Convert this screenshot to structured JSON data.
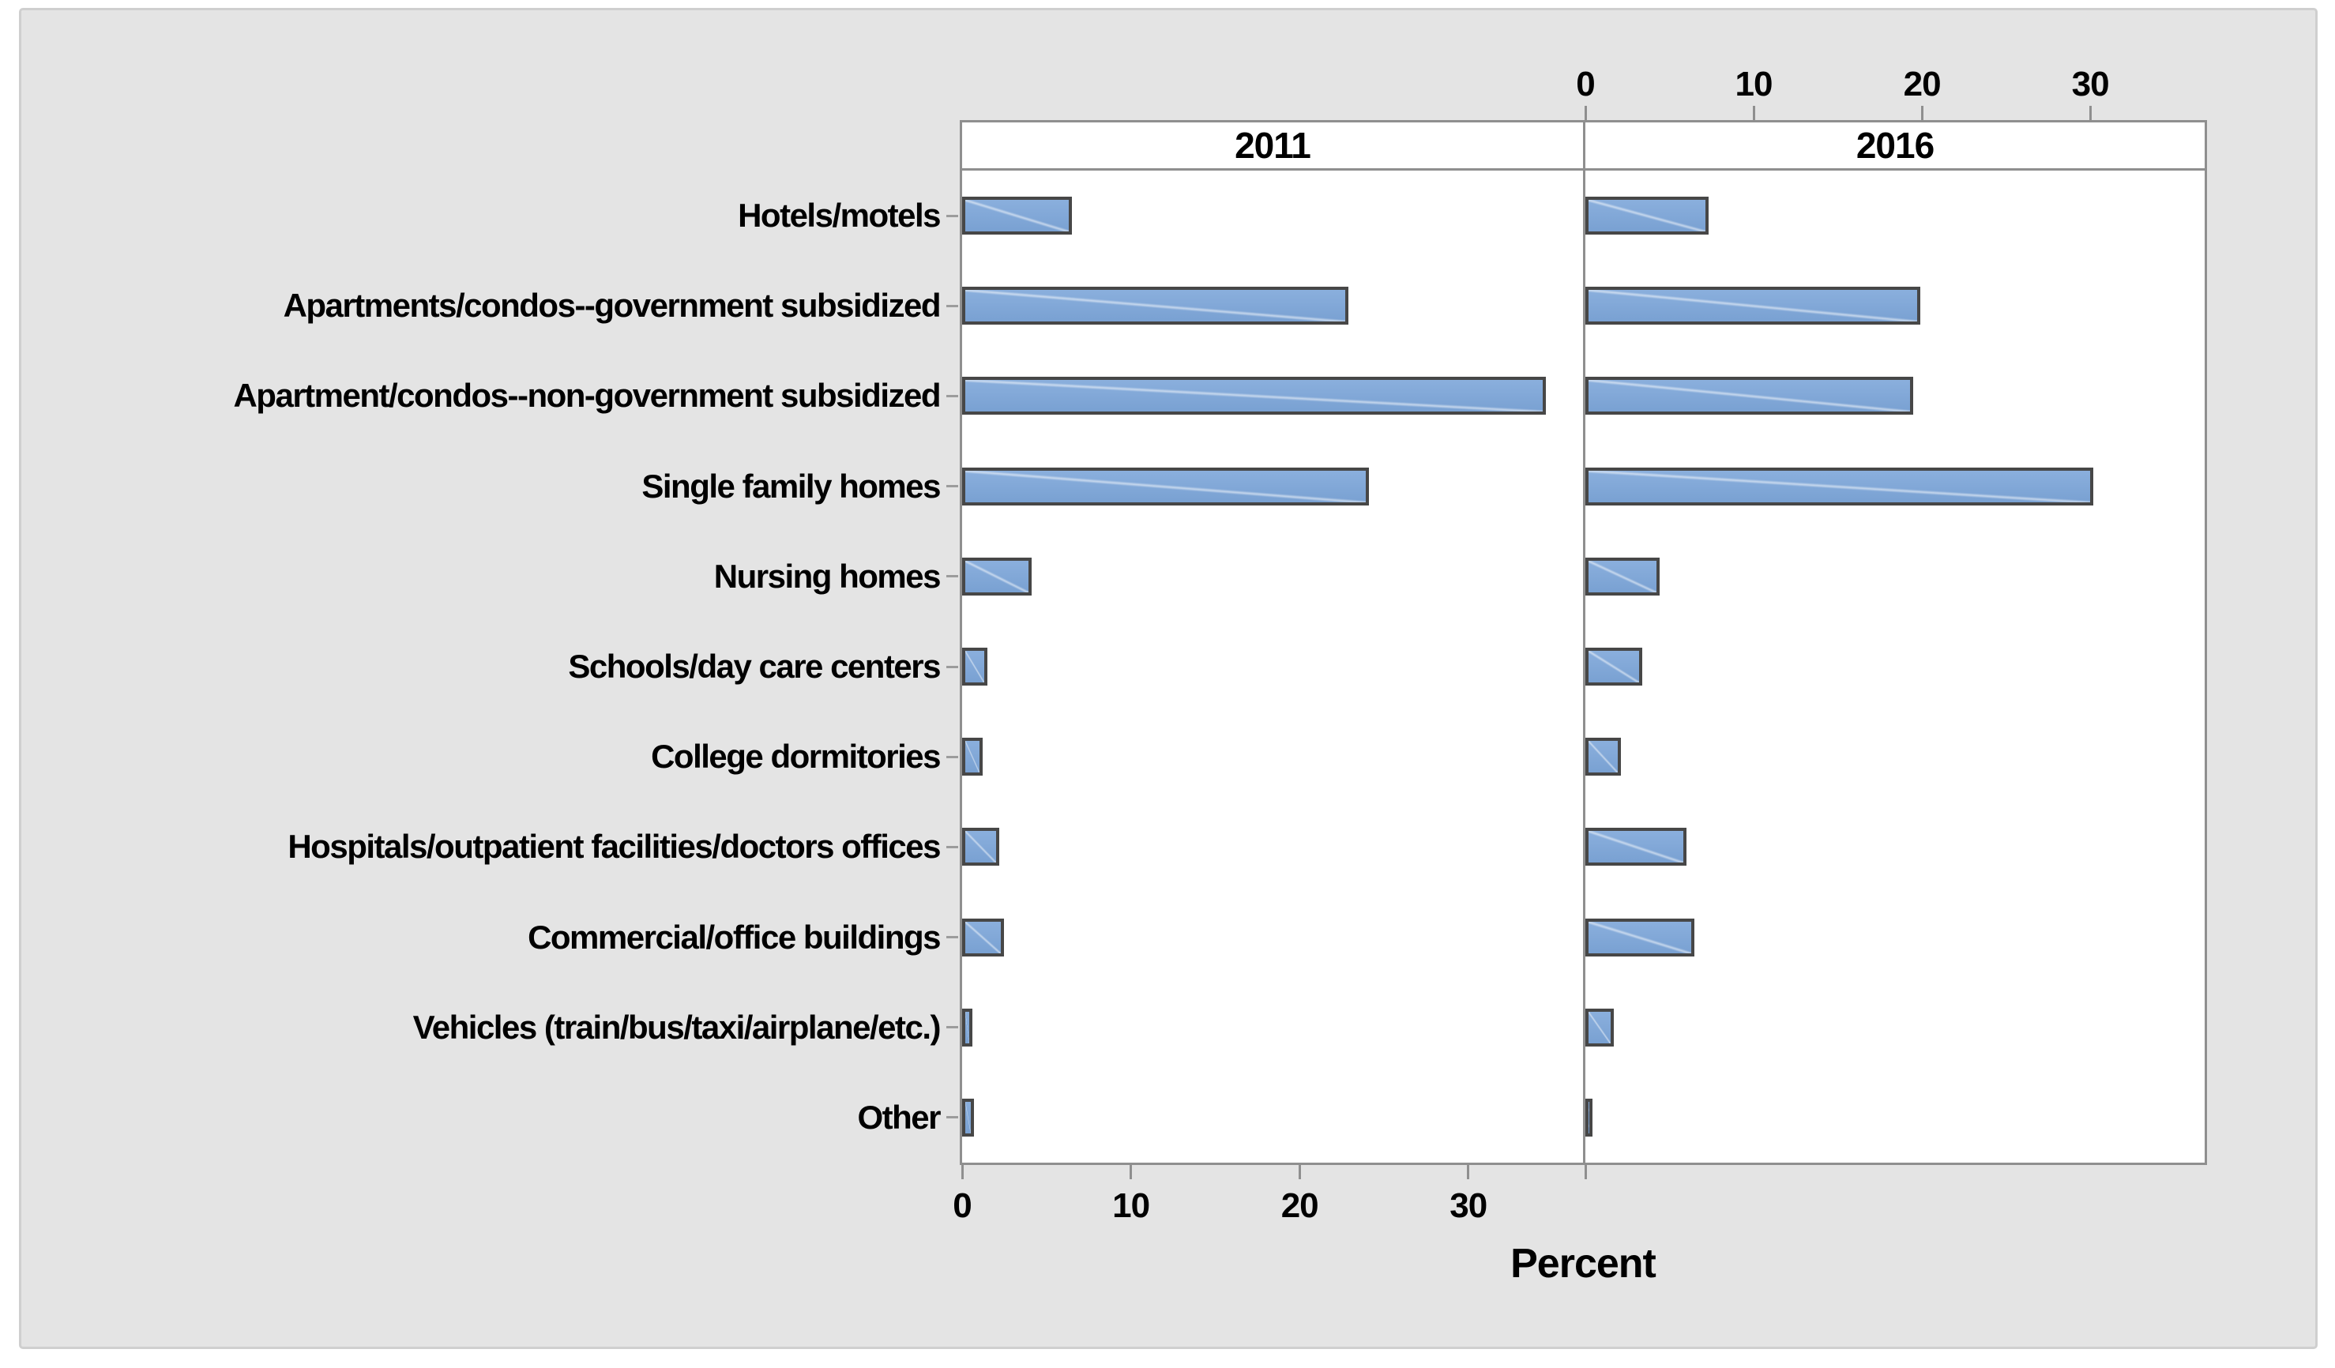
{
  "colors": {
    "page_background": "#ffffff",
    "canvas_background": "#e4e4e4",
    "canvas_border": "#cfcfcf",
    "plot_background": "#ffffff",
    "frame_line": "#8f8f8f",
    "bar_fill": "#7da6d9",
    "bar_border": "#474747",
    "text": "#000000"
  },
  "chart_data": {
    "type": "bar",
    "orientation": "horizontal",
    "panels": [
      "2011",
      "2016"
    ],
    "categories": [
      "Hotels/motels",
      "Apartments/condos--government subsidized",
      "Apartment/condos--non-government subsidized",
      "Single family homes",
      "Nursing homes",
      "Schools/day care centers",
      "College dormitories",
      "Hospitals/outpatient facilities/doctors offices",
      "Commercial/office buildings",
      "Vehicles (train/bus/taxi/airplane/etc.)",
      "Other"
    ],
    "series": [
      {
        "name": "2011",
        "values": [
          6.5,
          22.9,
          34.6,
          24.1,
          4.1,
          1.5,
          1.2,
          2.2,
          2.5,
          0.6,
          0.7
        ]
      },
      {
        "name": "2016",
        "values": [
          7.3,
          19.9,
          19.5,
          30.2,
          4.4,
          3.4,
          2.1,
          6.0,
          6.5,
          1.7,
          0.4
        ]
      }
    ],
    "xlabel": "Percent",
    "xticks": [
      0,
      10,
      20,
      30
    ],
    "xlim": [
      0,
      36.8
    ],
    "grid": false,
    "legend": "none",
    "layout": "two side-by-side panels sharing category axis; 2011 ticks on bottom axis, 2016 ticks on top axis"
  }
}
